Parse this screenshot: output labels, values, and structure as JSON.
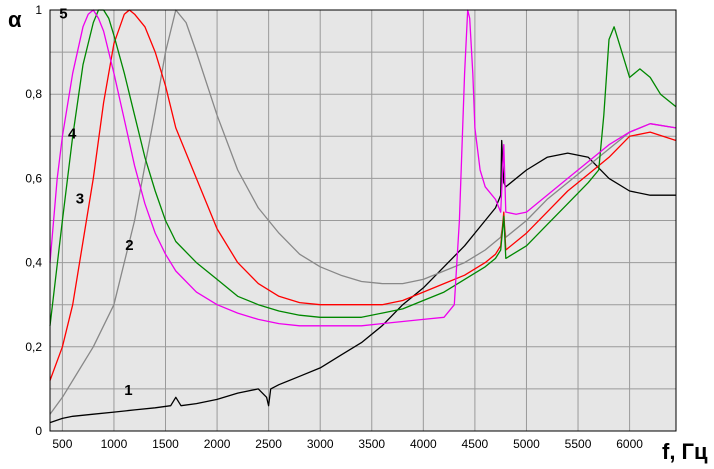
{
  "chart_data": {
    "type": "line",
    "ylabel": "α",
    "xlabel": "f, Гц",
    "xlim": [
      380,
      6450
    ],
    "ylim": [
      0,
      1.0
    ],
    "grid": true,
    "x_ticks": [
      500,
      1000,
      1500,
      2000,
      2500,
      3000,
      3500,
      4000,
      4500,
      5000,
      5500,
      6000
    ],
    "y_ticks": [
      {
        "value": 0,
        "label": "0"
      },
      {
        "value": 0.2,
        "label": "0,2"
      },
      {
        "value": 0.4,
        "label": "0,4"
      },
      {
        "value": 0.6,
        "label": "0,6"
      },
      {
        "value": 0.8,
        "label": "0,8"
      },
      {
        "value": 1.0,
        "label": "1"
      }
    ],
    "series": [
      {
        "name": "1",
        "color": "#000000",
        "x": [
          380,
          500,
          600,
          800,
          1000,
          1200,
          1400,
          1550,
          1600,
          1650,
          1800,
          2000,
          2200,
          2400,
          2480,
          2500,
          2520,
          2600,
          2800,
          3000,
          3200,
          3400,
          3600,
          3800,
          4000,
          4200,
          4400,
          4600,
          4700,
          4750,
          4760,
          4780,
          4800,
          5000,
          5200,
          5400,
          5600,
          5800,
          6000,
          6200,
          6450
        ],
        "y": [
          0.02,
          0.03,
          0.035,
          0.04,
          0.045,
          0.05,
          0.055,
          0.06,
          0.08,
          0.06,
          0.065,
          0.075,
          0.09,
          0.1,
          0.08,
          0.06,
          0.1,
          0.11,
          0.13,
          0.15,
          0.18,
          0.21,
          0.25,
          0.3,
          0.34,
          0.39,
          0.44,
          0.5,
          0.53,
          0.56,
          0.69,
          0.59,
          0.58,
          0.62,
          0.65,
          0.66,
          0.65,
          0.6,
          0.57,
          0.56,
          0.56
        ]
      },
      {
        "name": "2",
        "color": "#888888",
        "x": [
          380,
          500,
          600,
          800,
          1000,
          1200,
          1400,
          1500,
          1600,
          1700,
          1800,
          2000,
          2200,
          2400,
          2600,
          2800,
          3000,
          3200,
          3400,
          3600,
          3800,
          4000,
          4200,
          4400,
          4600,
          4700,
          4750,
          4780,
          4800,
          5000,
          5200,
          5400,
          5600,
          5800,
          6000,
          6200,
          6450
        ],
        "y": [
          0.04,
          0.08,
          0.12,
          0.2,
          0.3,
          0.5,
          0.76,
          0.9,
          1.0,
          0.97,
          0.9,
          0.75,
          0.62,
          0.53,
          0.47,
          0.42,
          0.39,
          0.37,
          0.355,
          0.35,
          0.35,
          0.36,
          0.38,
          0.4,
          0.43,
          0.45,
          0.46,
          0.5,
          0.46,
          0.5,
          0.55,
          0.59,
          0.63,
          0.67,
          0.71,
          0.73,
          0.72
        ]
      },
      {
        "name": "3",
        "color": "#ff0000",
        "x": [
          380,
          500,
          600,
          700,
          800,
          900,
          1000,
          1100,
          1150,
          1200,
          1300,
          1400,
          1500,
          1600,
          1800,
          2000,
          2200,
          2400,
          2600,
          2800,
          3000,
          3200,
          3400,
          3600,
          3800,
          4000,
          4200,
          4400,
          4600,
          4700,
          4750,
          4780,
          4800,
          5000,
          5200,
          5400,
          5600,
          5800,
          6000,
          6200,
          6450
        ],
        "y": [
          0.12,
          0.2,
          0.3,
          0.45,
          0.6,
          0.78,
          0.92,
          0.99,
          1.0,
          0.99,
          0.96,
          0.9,
          0.82,
          0.72,
          0.6,
          0.48,
          0.4,
          0.35,
          0.32,
          0.305,
          0.3,
          0.3,
          0.3,
          0.3,
          0.31,
          0.33,
          0.35,
          0.37,
          0.4,
          0.42,
          0.44,
          0.52,
          0.43,
          0.47,
          0.52,
          0.57,
          0.61,
          0.65,
          0.7,
          0.71,
          0.69
        ]
      },
      {
        "name": "4",
        "color": "#008800",
        "x": [
          380,
          500,
          600,
          700,
          800,
          850,
          900,
          950,
          1000,
          1100,
          1200,
          1300,
          1400,
          1500,
          1600,
          1800,
          2000,
          2200,
          2400,
          2600,
          2800,
          3000,
          3200,
          3400,
          3600,
          3800,
          4000,
          4200,
          4400,
          4600,
          4700,
          4750,
          4780,
          4800,
          5000,
          5200,
          5400,
          5600,
          5700,
          5750,
          5800,
          5850,
          5900,
          6000,
          6100,
          6200,
          6300,
          6450
        ],
        "y": [
          0.25,
          0.5,
          0.7,
          0.87,
          0.97,
          1.0,
          1.0,
          0.98,
          0.94,
          0.85,
          0.75,
          0.65,
          0.57,
          0.5,
          0.45,
          0.4,
          0.36,
          0.32,
          0.3,
          0.285,
          0.275,
          0.27,
          0.27,
          0.27,
          0.28,
          0.29,
          0.31,
          0.33,
          0.36,
          0.39,
          0.41,
          0.43,
          0.51,
          0.41,
          0.44,
          0.49,
          0.54,
          0.59,
          0.62,
          0.75,
          0.93,
          0.96,
          0.92,
          0.84,
          0.86,
          0.84,
          0.8,
          0.77
        ]
      },
      {
        "name": "5",
        "color": "#ee00ee",
        "x": [
          380,
          450,
          500,
          600,
          700,
          750,
          800,
          850,
          900,
          1000,
          1100,
          1200,
          1300,
          1400,
          1500,
          1600,
          1800,
          2000,
          2200,
          2400,
          2600,
          2800,
          3000,
          3200,
          3400,
          3600,
          3800,
          4000,
          4200,
          4300,
          4350,
          4400,
          4430,
          4450,
          4480,
          4500,
          4550,
          4600,
          4700,
          4750,
          4780,
          4800,
          4900,
          5000,
          5200,
          5400,
          5600,
          5800,
          6000,
          6200,
          6450
        ],
        "y": [
          0.4,
          0.6,
          0.7,
          0.85,
          0.96,
          0.99,
          1.0,
          0.98,
          0.95,
          0.85,
          0.74,
          0.63,
          0.54,
          0.47,
          0.42,
          0.38,
          0.33,
          0.3,
          0.28,
          0.265,
          0.255,
          0.25,
          0.25,
          0.25,
          0.25,
          0.255,
          0.26,
          0.265,
          0.27,
          0.3,
          0.5,
          0.85,
          1.0,
          0.98,
          0.85,
          0.72,
          0.62,
          0.58,
          0.55,
          0.52,
          0.68,
          0.52,
          0.515,
          0.52,
          0.56,
          0.6,
          0.64,
          0.68,
          0.71,
          0.73,
          0.72
        ]
      }
    ],
    "curve_labels": [
      {
        "text": "1",
        "x": 1140,
        "y": 0.085
      },
      {
        "text": "2",
        "x": 1150,
        "y": 0.43
      },
      {
        "text": "3",
        "x": 670,
        "y": 0.54
      },
      {
        "text": "4",
        "x": 595,
        "y": 0.695
      },
      {
        "text": "5",
        "x": 510,
        "y": 0.98
      }
    ]
  }
}
